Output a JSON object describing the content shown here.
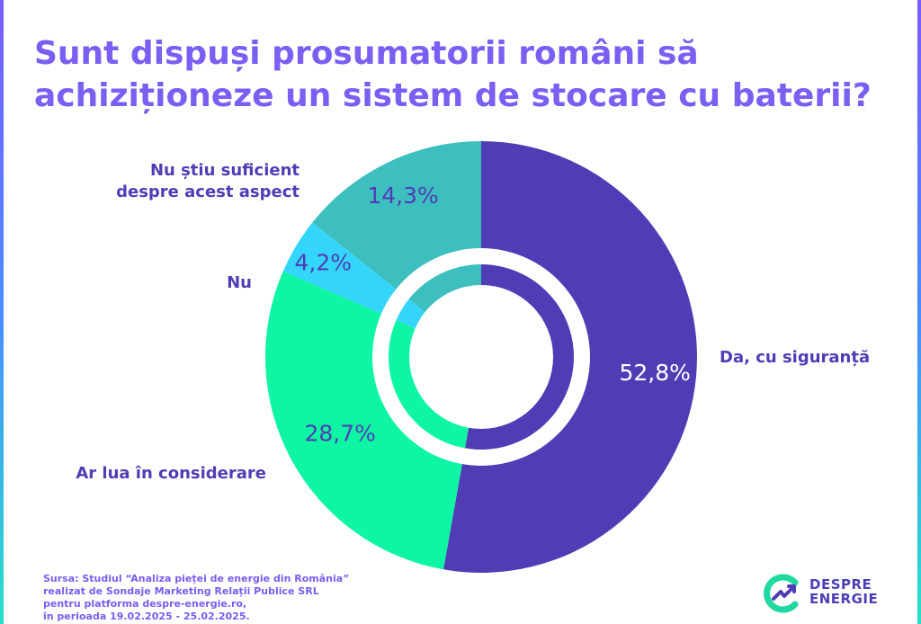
{
  "title": "Sunt dispuși prosumatorii români să achiziționeze un sistem de stocare cu baterii?",
  "chart_data": {
    "type": "pie",
    "variant": "donut-with-inner-ring",
    "unit": "%",
    "slices": [
      {
        "label": "Da, cu siguranță",
        "value": 52.8,
        "display": "52,8%",
        "color": "#503db5"
      },
      {
        "label": "Ar lua în considerare",
        "value": 28.7,
        "display": "28,7%",
        "color": "#0ef5a4"
      },
      {
        "label": "Nu",
        "value": 4.2,
        "display": "4,2%",
        "color": "#34d5fa"
      },
      {
        "label": "Nu știu suficient despre acest aspect",
        "label_lines": [
          "Nu știu suficient",
          "despre acest aspect"
        ],
        "value": 14.3,
        "display": "14,3%",
        "color": "#3dbfbf"
      }
    ],
    "label_color": "#503db5",
    "value_label_color_dark": "#ffffff",
    "value_label_color_light": "#503db5"
  },
  "source": {
    "lines": [
      "Sursa: Studiul “Analiza pieței de energie din România”",
      "realizat de Sondaje Marketing Relații Publice SRL",
      "pentru platforma despre-energie.ro,",
      "în perioada 19.02.2025 - 25.02.2025."
    ]
  },
  "logo": {
    "line1": "DESPRE",
    "line2": "ENERGIE",
    "colors": {
      "mark_green": "#1fd9a0",
      "mark_purple": "#503db5"
    }
  }
}
